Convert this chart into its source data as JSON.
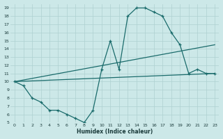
{
  "xlabel": "Humidex (Indice chaleur)",
  "bg_color": "#cce8e8",
  "grid_color": "#aed0d0",
  "line_color": "#1a6b6b",
  "xlim": [
    -0.5,
    23.5
  ],
  "ylim": [
    5,
    19.5
  ],
  "xticks": [
    0,
    1,
    2,
    3,
    4,
    5,
    6,
    7,
    8,
    9,
    10,
    11,
    12,
    13,
    14,
    15,
    16,
    17,
    18,
    19,
    20,
    21,
    22,
    23
  ],
  "yticks": [
    5,
    6,
    7,
    8,
    9,
    10,
    11,
    12,
    13,
    14,
    15,
    16,
    17,
    18,
    19
  ],
  "line1_x": [
    0,
    1,
    2,
    3,
    4,
    5,
    6,
    7,
    8,
    9,
    10,
    11,
    12,
    13,
    14,
    15,
    16,
    17,
    18,
    19,
    20,
    21,
    22,
    23
  ],
  "line1_y": [
    10,
    9.5,
    8.0,
    7.5,
    6.5,
    6.5,
    6.0,
    5.5,
    5.0,
    6.5,
    11.5,
    15.0,
    11.5,
    18.0,
    19.0,
    19.0,
    18.5,
    18.0,
    16.0,
    14.5,
    11.0,
    11.5,
    11.0,
    11.0
  ],
  "line2_x": [
    0,
    23
  ],
  "line2_y": [
    10,
    14.5
  ],
  "line3_x": [
    0,
    23
  ],
  "line3_y": [
    10,
    11.0
  ]
}
